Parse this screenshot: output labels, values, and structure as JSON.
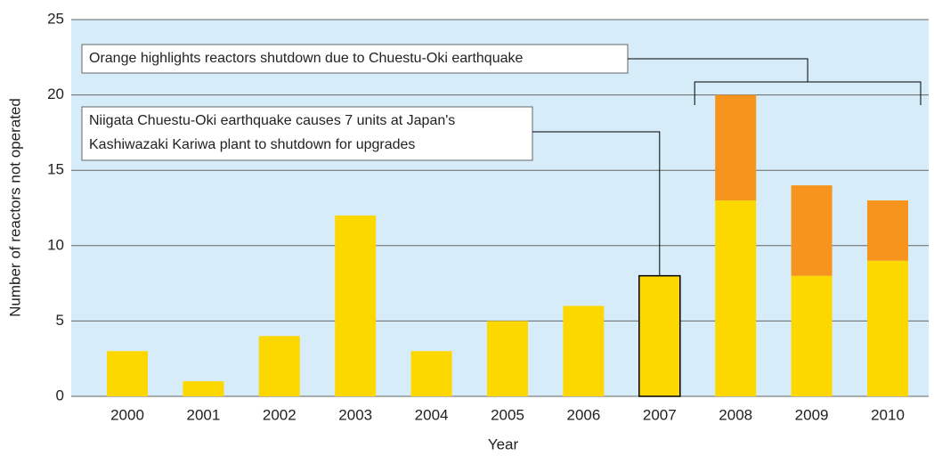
{
  "chart_data": {
    "type": "bar",
    "stacked": true,
    "y_label": "Number of reactors not operated",
    "x_label": "Year",
    "categories": [
      "2000",
      "2001",
      "2002",
      "2003",
      "2004",
      "2005",
      "2006",
      "2007",
      "2008",
      "2009",
      "2010"
    ],
    "series": [
      {
        "color": "#fcd800",
        "values": [
          3,
          1,
          4,
          12,
          3,
          5,
          6,
          8,
          13,
          8,
          9
        ]
      },
      {
        "color": "#f7941d",
        "values": [
          0,
          0,
          0,
          0,
          0,
          0,
          0,
          0,
          7,
          6,
          4
        ]
      }
    ],
    "ylim": [
      0,
      25
    ],
    "yticks": [
      0,
      5,
      10,
      15,
      20,
      25
    ],
    "grid": true,
    "annotations": [
      {
        "lines": [
          "Orange highlights reactors shutdown due to Chuestu-Oki earthquake"
        ],
        "from": "2008",
        "to": "2010"
      },
      {
        "lines": [
          "Niigata Chuestu-Oki earthquake causes 7 units at Japan's",
          "Kashiwazaki Kariwa plant to shutdown for upgrades"
        ],
        "from": "2007",
        "to": "2007"
      }
    ]
  }
}
